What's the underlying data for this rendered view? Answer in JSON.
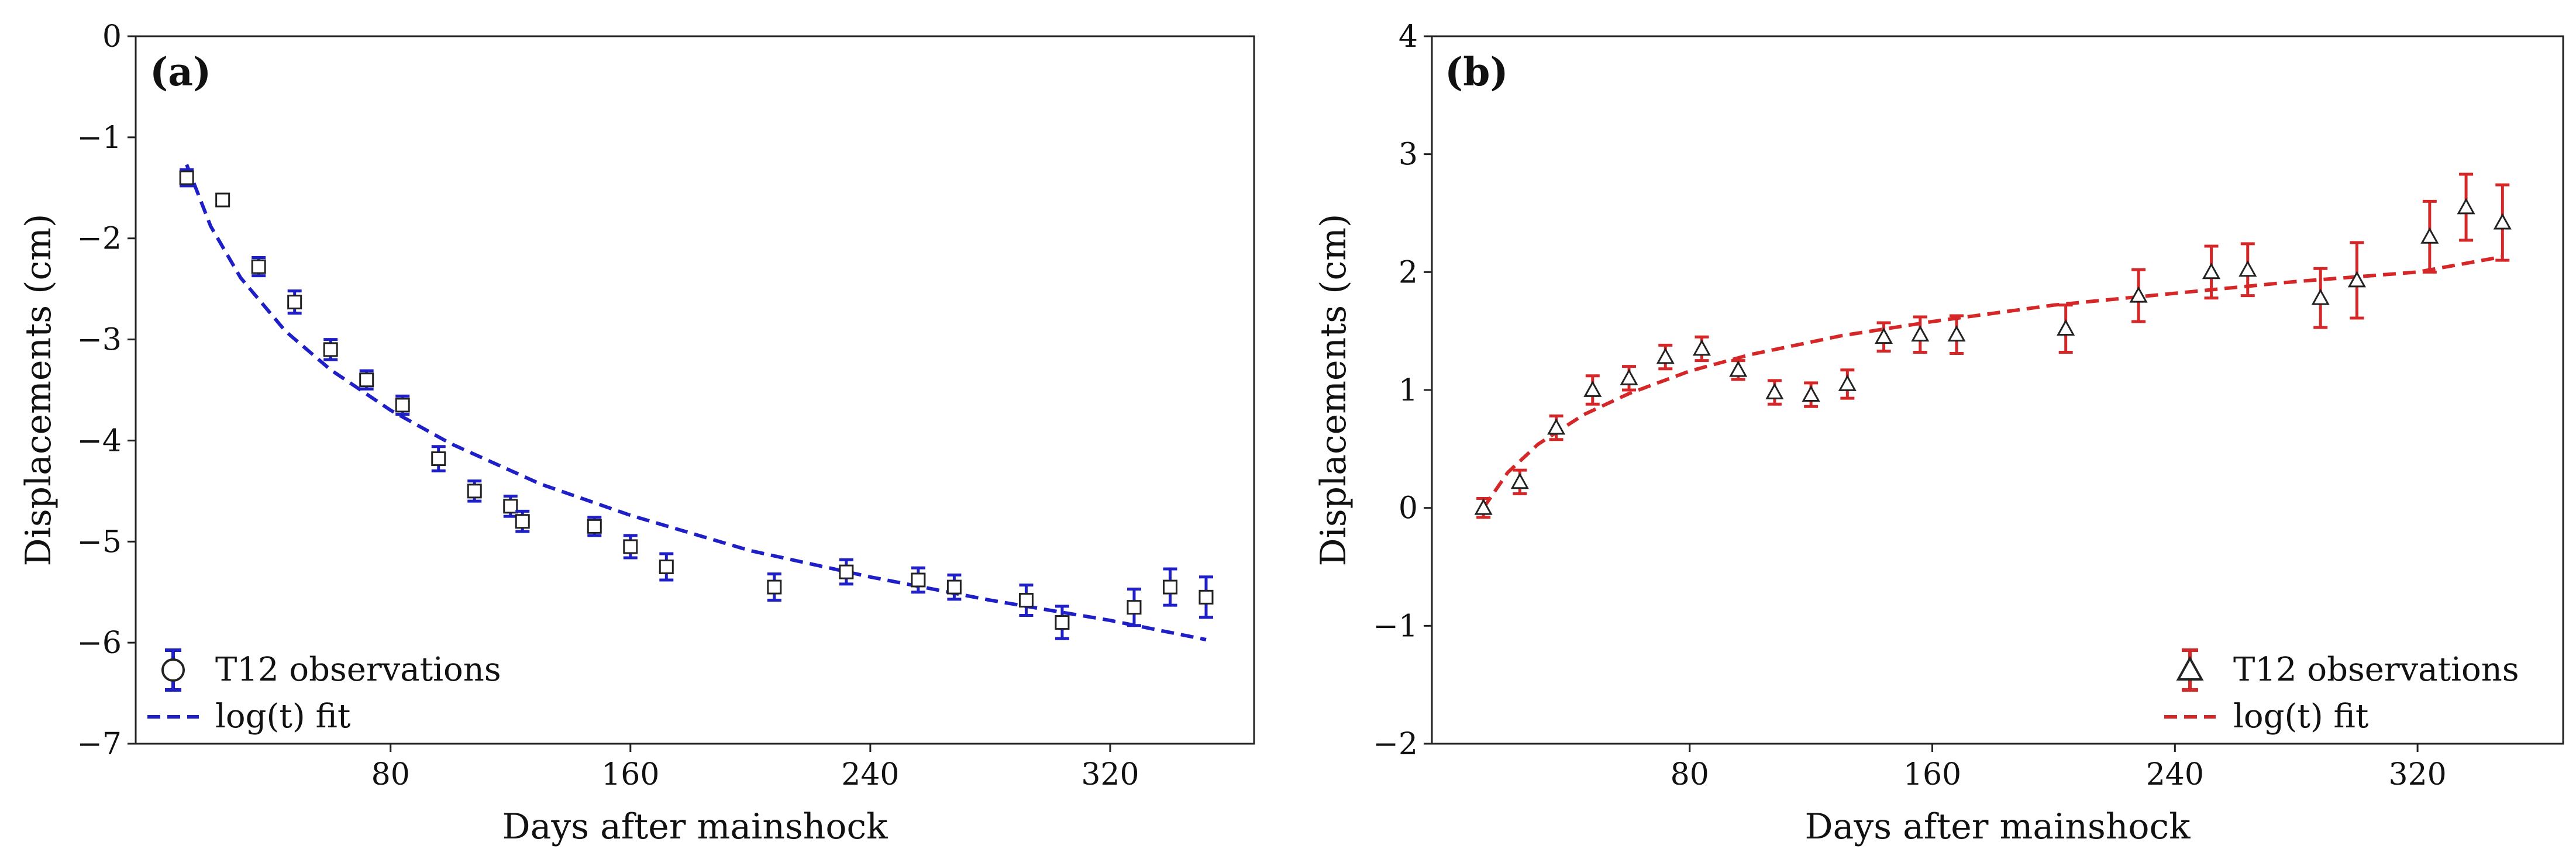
{
  "figure": {
    "x_label": "Days after mainshock",
    "y_label": "Displacements (cm)"
  },
  "panels": [
    {
      "tag": "(a)",
      "color": "#1f1fc8",
      "marker": "square",
      "legend_position": "bottom-left",
      "legend": {
        "observations": "T12 observations",
        "fit": "log(t) fit"
      }
    },
    {
      "tag": "(b)",
      "color": "#d62728",
      "marker": "triangle",
      "legend_position": "bottom-right",
      "legend": {
        "observations": "T12 observations",
        "fit": "log(t) fit"
      }
    }
  ],
  "chart_data": [
    {
      "type": "scatter",
      "title": "(a)",
      "xlabel": "Days after mainshock",
      "ylabel": "Displacements (cm)",
      "xlim": [
        -5,
        368
      ],
      "ylim": [
        -7,
        0
      ],
      "xticks": [
        80,
        160,
        240,
        320
      ],
      "yticks": [
        0,
        -1,
        -2,
        -3,
        -4,
        -5,
        -6,
        -7
      ],
      "ytick_labels": [
        "0",
        "−1",
        "−2",
        "−3",
        "−4",
        "−5",
        "−6",
        "−7"
      ],
      "grid": false,
      "legend_loc": "lower left",
      "series": [
        {
          "name": "T12 observations",
          "kind": "errorbar",
          "marker": "square",
          "color": "#1f1fc8",
          "x": [
            12,
            24,
            36,
            48,
            60,
            72,
            84,
            96,
            108,
            120,
            124,
            148,
            160,
            172,
            208,
            232,
            256,
            268,
            292,
            304,
            328,
            340,
            352
          ],
          "y": [
            -1.4,
            -1.62,
            -2.28,
            -2.63,
            -3.1,
            -3.4,
            -3.65,
            -4.18,
            -4.5,
            -4.65,
            -4.8,
            -4.85,
            -5.05,
            -5.25,
            -5.45,
            -5.3,
            -5.38,
            -5.45,
            -5.58,
            -5.8,
            -5.65,
            -5.45,
            -5.55
          ],
          "yerr": [
            0.08,
            0.05,
            0.09,
            0.11,
            0.1,
            0.09,
            0.09,
            0.12,
            0.1,
            0.1,
            0.1,
            0.09,
            0.11,
            0.13,
            0.13,
            0.12,
            0.12,
            0.12,
            0.15,
            0.16,
            0.18,
            0.18,
            0.2
          ]
        },
        {
          "name": "log(t) fit",
          "kind": "dashed-line",
          "color": "#1f1fc8",
          "x": [
            12,
            20,
            30,
            45,
            60,
            80,
            100,
            130,
            160,
            200,
            240,
            280,
            320,
            352
          ],
          "y": [
            -1.27,
            -1.88,
            -2.39,
            -2.92,
            -3.3,
            -3.7,
            -4.03,
            -4.43,
            -4.74,
            -5.09,
            -5.35,
            -5.58,
            -5.78,
            -5.97
          ]
        }
      ]
    },
    {
      "type": "scatter",
      "title": "(b)",
      "xlabel": "Days after mainshock",
      "ylabel": "Displacements (cm)",
      "xlim": [
        -5,
        368
      ],
      "ylim": [
        -2,
        4
      ],
      "xticks": [
        80,
        160,
        240,
        320
      ],
      "yticks": [
        -2,
        -1,
        0,
        1,
        2,
        3,
        4
      ],
      "ytick_labels": [
        "−2",
        "−1",
        "0",
        "1",
        "2",
        "3",
        "4"
      ],
      "grid": false,
      "legend_loc": "lower right",
      "series": [
        {
          "name": "T12 observations",
          "kind": "errorbar",
          "marker": "triangle",
          "color": "#d62728",
          "x": [
            12,
            24,
            36,
            48,
            60,
            72,
            84,
            96,
            108,
            120,
            132,
            144,
            156,
            168,
            204,
            228,
            252,
            264,
            288,
            300,
            324,
            336,
            348
          ],
          "y": [
            0.0,
            0.22,
            0.68,
            1.0,
            1.1,
            1.28,
            1.35,
            1.17,
            0.98,
            0.96,
            1.05,
            1.45,
            1.47,
            1.47,
            1.52,
            1.8,
            2.0,
            2.02,
            1.78,
            1.93,
            2.3,
            2.55,
            2.42
          ],
          "yerr": [
            0.08,
            0.1,
            0.1,
            0.12,
            0.1,
            0.1,
            0.1,
            0.08,
            0.1,
            0.1,
            0.12,
            0.12,
            0.15,
            0.16,
            0.2,
            0.22,
            0.22,
            0.22,
            0.25,
            0.32,
            0.3,
            0.28,
            0.32
          ]
        },
        {
          "name": "log(t) fit",
          "kind": "dashed-line",
          "color": "#d62728",
          "x": [
            12,
            20,
            30,
            45,
            60,
            80,
            100,
            130,
            160,
            200,
            240,
            280,
            320,
            348
          ],
          "y": [
            0.0,
            0.3,
            0.54,
            0.79,
            0.97,
            1.16,
            1.3,
            1.46,
            1.58,
            1.72,
            1.82,
            1.92,
            2.0,
            2.13
          ]
        }
      ]
    }
  ]
}
